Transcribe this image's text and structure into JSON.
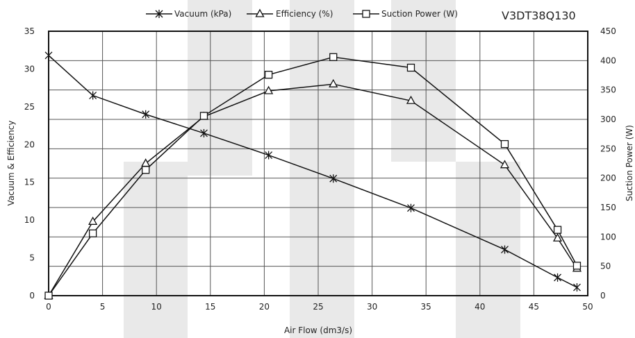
{
  "chart_data": {
    "type": "line",
    "model": "V3DT38Q130",
    "xlabel": "Air Flow (dm3/s)",
    "ylabel_left": "Vacuum  & Efficiency",
    "ylabel_right": "Suction Power (W)",
    "xlim": [
      0,
      50
    ],
    "ylim_left": [
      0,
      35
    ],
    "ylim_right": [
      0,
      450
    ],
    "x_ticks": [
      "0",
      "5",
      "10",
      "15",
      "20",
      "25",
      "30",
      "35",
      "40",
      "45",
      "50"
    ],
    "y_left_ticks": [
      "0",
      "5",
      "10",
      "15",
      "20",
      "25",
      "30",
      "35"
    ],
    "y_right_ticks": [
      "0",
      "50",
      "100",
      "150",
      "200",
      "250",
      "300",
      "350",
      "400",
      "450"
    ],
    "grid": true,
    "legend_position": "top",
    "x": [
      0,
      4.1,
      9.0,
      14.4,
      20.4,
      26.4,
      33.6,
      42.3,
      47.2,
      49.0
    ],
    "series": [
      {
        "name": "Vacuum (kPa)",
        "axis": "left",
        "marker": "star",
        "values": [
          31.8,
          26.5,
          24.0,
          21.5,
          18.6,
          15.5,
          11.6,
          6.1,
          2.4,
          1.1
        ]
      },
      {
        "name": "Efficiency (%)",
        "axis": "left",
        "marker": "triangle",
        "values": [
          0,
          9.8,
          17.5,
          23.7,
          27.1,
          28.0,
          25.8,
          17.3,
          7.6,
          3.6
        ]
      },
      {
        "name": "Suction Power (W)",
        "axis": "right",
        "marker": "square",
        "values": [
          0,
          106,
          214,
          306,
          376,
          406,
          388,
          258,
          112,
          51
        ]
      }
    ]
  }
}
